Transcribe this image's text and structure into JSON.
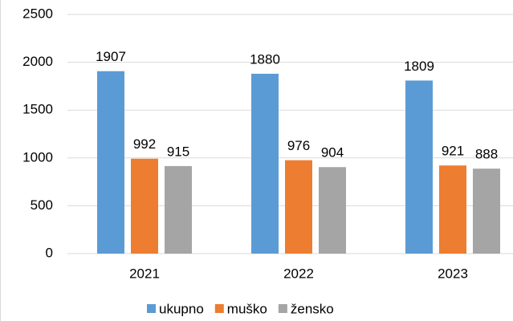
{
  "chart_data": {
    "type": "bar",
    "categories": [
      "2021",
      "2022",
      "2023"
    ],
    "series": [
      {
        "name": "ukupno",
        "color": "#5b9bd5",
        "values": [
          1907,
          1880,
          1809
        ]
      },
      {
        "name": "muško",
        "color": "#ed7d31",
        "values": [
          992,
          976,
          921
        ]
      },
      {
        "name": "žensko",
        "color": "#a5a5a5",
        "values": [
          915,
          904,
          888
        ]
      }
    ],
    "ylim": [
      0,
      2500
    ],
    "yticks": [
      0,
      500,
      1000,
      1500,
      2000,
      2500
    ],
    "grid": true,
    "legend": "bottom"
  }
}
